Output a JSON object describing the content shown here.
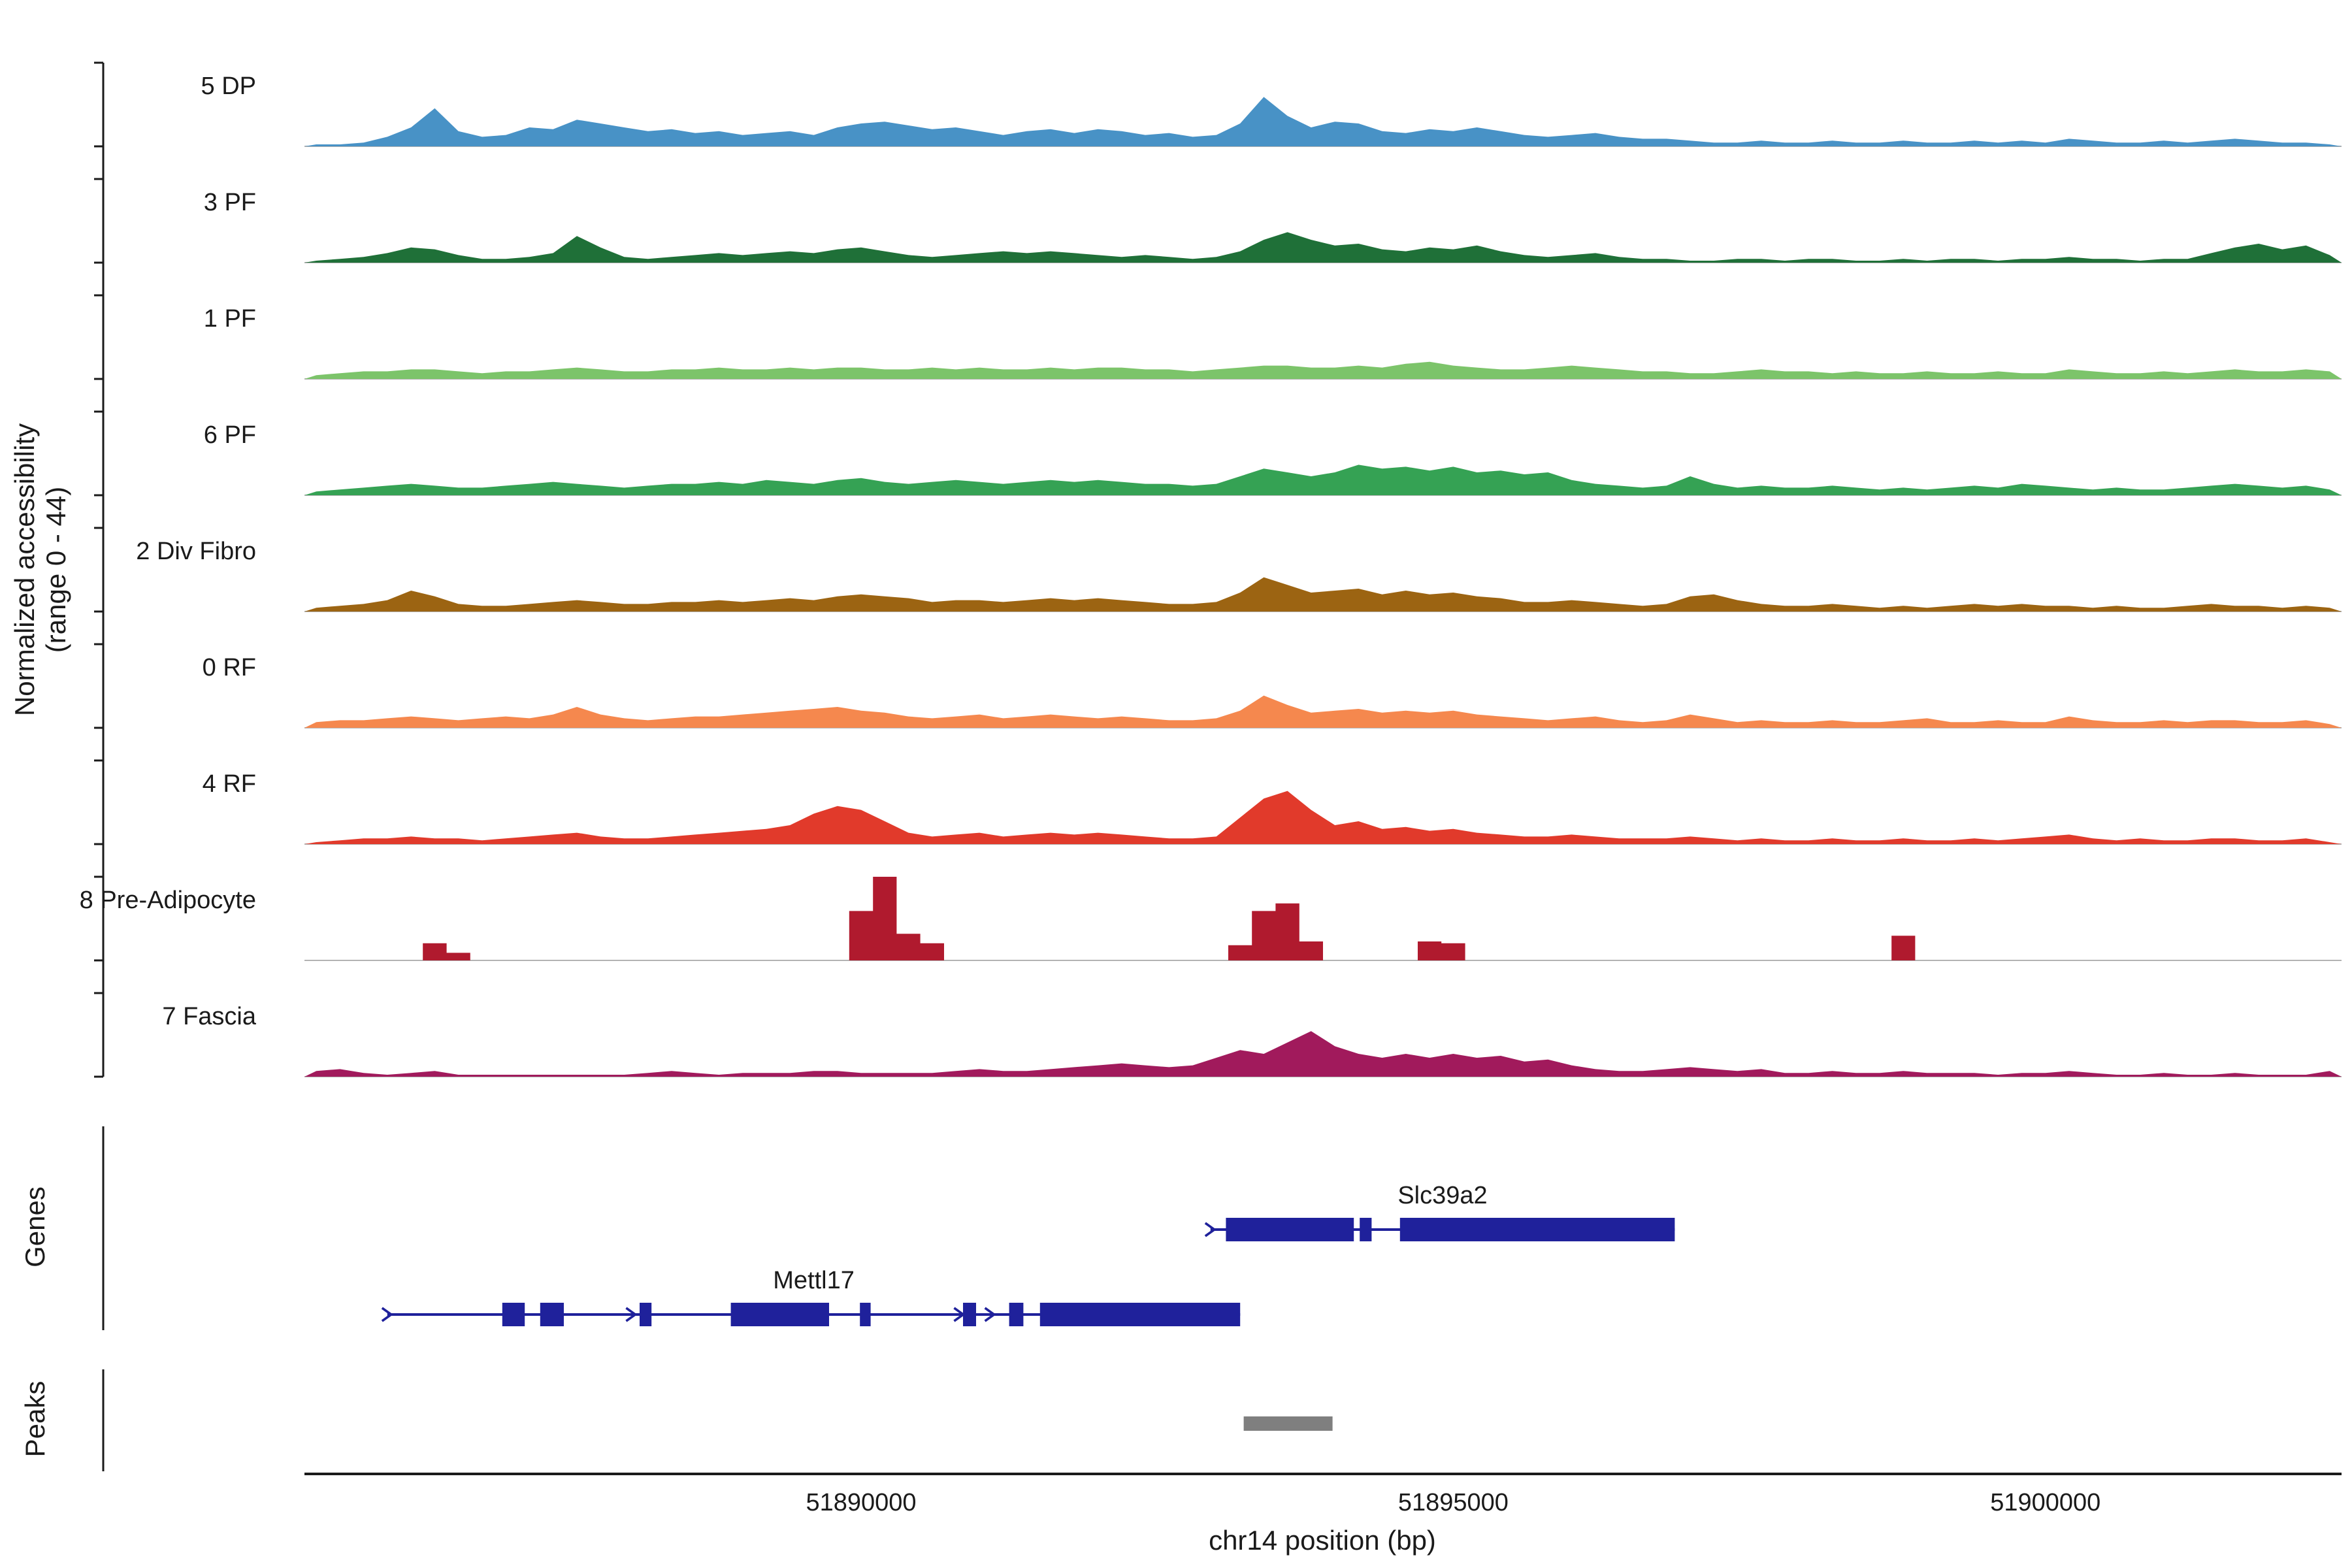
{
  "y_axis": {
    "label_line1": "Normalized accessibility",
    "label_line2": "(range 0 - 44)",
    "min": 0,
    "max": 44
  },
  "x_axis": {
    "label": "chr14 position (bp)",
    "ticks": [
      {
        "bp": 51890000,
        "label": "51890000"
      },
      {
        "bp": 51895000,
        "label": "51895000"
      },
      {
        "bp": 51900000,
        "label": "51900000"
      }
    ]
  },
  "sections": {
    "genes_label": "Genes",
    "peaks_label": "Peaks"
  },
  "chart_data": {
    "type": "area",
    "subtype": "genome-coverage-tracks",
    "region": {
      "chrom": "chr14",
      "start": 51885300,
      "end": 51902500,
      "bin_size_bp": 200
    },
    "xlim": [
      51885300,
      51902500
    ],
    "ylim_per_track": [
      0,
      44
    ],
    "gene_color": "#1f219b",
    "tracks": [
      {
        "id": "5-dp",
        "label": "5 DP",
        "color": "#4892c6",
        "style": "area",
        "values": [
          1,
          1,
          2,
          5,
          10,
          20,
          8,
          5,
          6,
          10,
          9,
          14,
          12,
          10,
          8,
          9,
          7,
          8,
          6,
          7,
          8,
          6,
          10,
          12,
          13,
          11,
          9,
          10,
          8,
          6,
          8,
          9,
          7,
          9,
          8,
          6,
          7,
          5,
          6,
          12,
          26,
          16,
          10,
          13,
          12,
          8,
          7,
          9,
          8,
          10,
          8,
          6,
          5,
          6,
          7,
          5,
          4,
          4,
          3,
          2,
          2,
          3,
          2,
          2,
          3,
          2,
          2,
          3,
          2,
          2,
          3,
          2,
          3,
          2,
          4,
          3,
          2,
          2,
          3,
          2,
          3,
          4,
          3,
          2,
          2,
          1
        ]
      },
      {
        "id": "3-pf",
        "label": "3 PF",
        "color": "#1f7038",
        "style": "area",
        "values": [
          1,
          2,
          3,
          5,
          8,
          7,
          4,
          2,
          2,
          3,
          5,
          14,
          8,
          3,
          2,
          3,
          4,
          5,
          4,
          5,
          6,
          5,
          7,
          8,
          6,
          4,
          3,
          4,
          5,
          6,
          5,
          6,
          5,
          4,
          3,
          4,
          3,
          2,
          3,
          6,
          12,
          16,
          12,
          9,
          10,
          7,
          6,
          8,
          7,
          9,
          6,
          4,
          3,
          4,
          5,
          3,
          2,
          2,
          1,
          1,
          2,
          2,
          1,
          2,
          2,
          1,
          1,
          2,
          1,
          2,
          2,
          1,
          2,
          2,
          3,
          2,
          2,
          1,
          2,
          2,
          5,
          8,
          10,
          7,
          9,
          4
        ]
      },
      {
        "id": "1-pf",
        "label": "1 PF",
        "color": "#7cc46a",
        "style": "area",
        "values": [
          2,
          3,
          4,
          4,
          5,
          5,
          4,
          3,
          4,
          4,
          5,
          6,
          5,
          4,
          4,
          5,
          5,
          6,
          5,
          5,
          6,
          5,
          6,
          6,
          5,
          5,
          6,
          5,
          6,
          5,
          5,
          6,
          5,
          6,
          6,
          5,
          5,
          4,
          5,
          6,
          7,
          7,
          6,
          6,
          7,
          6,
          8,
          9,
          7,
          6,
          5,
          5,
          6,
          7,
          6,
          5,
          4,
          4,
          3,
          3,
          4,
          5,
          4,
          4,
          3,
          4,
          3,
          3,
          4,
          3,
          3,
          4,
          3,
          3,
          5,
          4,
          3,
          3,
          4,
          3,
          4,
          5,
          4,
          4,
          5,
          4
        ]
      },
      {
        "id": "6-pf",
        "label": "6 PF",
        "color": "#35a254",
        "style": "area",
        "values": [
          2,
          3,
          4,
          5,
          6,
          5,
          4,
          4,
          5,
          6,
          7,
          6,
          5,
          4,
          5,
          6,
          6,
          7,
          6,
          8,
          7,
          6,
          8,
          9,
          7,
          6,
          7,
          8,
          7,
          6,
          7,
          8,
          7,
          8,
          7,
          6,
          6,
          5,
          6,
          10,
          14,
          12,
          10,
          12,
          16,
          14,
          15,
          13,
          15,
          12,
          13,
          11,
          12,
          8,
          6,
          5,
          4,
          5,
          10,
          6,
          4,
          5,
          4,
          4,
          5,
          4,
          3,
          4,
          3,
          4,
          5,
          4,
          6,
          5,
          4,
          3,
          4,
          3,
          3,
          4,
          5,
          6,
          5,
          4,
          5,
          3
        ]
      },
      {
        "id": "2-div-fibro",
        "label": "2 Div Fibro",
        "color": "#9c6412",
        "style": "area",
        "values": [
          2,
          3,
          4,
          6,
          11,
          8,
          4,
          3,
          3,
          4,
          5,
          6,
          5,
          4,
          4,
          5,
          5,
          6,
          5,
          6,
          7,
          6,
          8,
          9,
          8,
          7,
          5,
          6,
          6,
          5,
          6,
          7,
          6,
          7,
          6,
          5,
          4,
          4,
          5,
          10,
          18,
          14,
          10,
          11,
          12,
          9,
          11,
          9,
          10,
          8,
          7,
          5,
          5,
          6,
          5,
          4,
          3,
          4,
          8,
          9,
          6,
          4,
          3,
          3,
          4,
          3,
          2,
          3,
          2,
          3,
          4,
          3,
          4,
          3,
          3,
          2,
          3,
          2,
          2,
          3,
          4,
          3,
          3,
          2,
          3,
          2
        ]
      },
      {
        "id": "0-rf",
        "label": "0 RF",
        "color": "#f5884e",
        "style": "area",
        "values": [
          3,
          4,
          4,
          5,
          6,
          5,
          4,
          5,
          6,
          5,
          7,
          11,
          7,
          5,
          4,
          5,
          6,
          6,
          7,
          8,
          9,
          10,
          11,
          9,
          8,
          6,
          5,
          6,
          7,
          5,
          6,
          7,
          6,
          5,
          6,
          5,
          4,
          4,
          5,
          9,
          17,
          12,
          8,
          9,
          10,
          8,
          9,
          8,
          9,
          7,
          6,
          5,
          4,
          5,
          6,
          4,
          3,
          4,
          7,
          5,
          3,
          4,
          3,
          3,
          4,
          3,
          3,
          4,
          5,
          3,
          3,
          4,
          3,
          3,
          6,
          4,
          3,
          3,
          4,
          3,
          4,
          4,
          3,
          3,
          4,
          2
        ]
      },
      {
        "id": "4-rf",
        "label": "4 RF",
        "color": "#e13a2b",
        "style": "area",
        "values": [
          1,
          2,
          3,
          3,
          4,
          3,
          3,
          2,
          3,
          4,
          5,
          6,
          4,
          3,
          3,
          4,
          5,
          6,
          7,
          8,
          10,
          16,
          20,
          18,
          12,
          6,
          4,
          5,
          6,
          4,
          5,
          6,
          5,
          6,
          5,
          4,
          3,
          3,
          4,
          14,
          24,
          28,
          18,
          10,
          12,
          8,
          9,
          7,
          8,
          6,
          5,
          4,
          4,
          5,
          4,
          3,
          3,
          3,
          4,
          3,
          2,
          3,
          2,
          2,
          3,
          2,
          2,
          3,
          2,
          2,
          3,
          2,
          3,
          4,
          5,
          3,
          2,
          3,
          2,
          2,
          3,
          3,
          2,
          2,
          3,
          1
        ]
      },
      {
        "id": "8-pre-adipocyte",
        "label": "8 Pre-Adipocyte",
        "color": "#b01a2e",
        "style": "blocks",
        "values": [
          0,
          0,
          0,
          0,
          0,
          9,
          4,
          0,
          0,
          0,
          0,
          0,
          0,
          0,
          0,
          0,
          0,
          0,
          0,
          0,
          0,
          0,
          0,
          26,
          44,
          14,
          9,
          0,
          0,
          0,
          0,
          0,
          0,
          0,
          0,
          0,
          0,
          0,
          0,
          8,
          26,
          30,
          10,
          0,
          0,
          0,
          0,
          10,
          9,
          0,
          0,
          0,
          0,
          0,
          0,
          0,
          0,
          0,
          0,
          0,
          0,
          0,
          0,
          0,
          0,
          0,
          0,
          13,
          0,
          0,
          0,
          0,
          0,
          0,
          0,
          0,
          0,
          0,
          0,
          0,
          0,
          0,
          0,
          0,
          0,
          0
        ]
      },
      {
        "id": "7-fascia",
        "label": "7 Fascia",
        "color": "#a11a5c",
        "style": "area",
        "values": [
          3,
          4,
          2,
          1,
          2,
          3,
          1,
          1,
          1,
          1,
          1,
          1,
          1,
          1,
          2,
          3,
          2,
          1,
          2,
          2,
          2,
          3,
          3,
          2,
          2,
          2,
          2,
          3,
          4,
          3,
          3,
          4,
          5,
          6,
          7,
          6,
          5,
          6,
          10,
          14,
          12,
          18,
          24,
          16,
          12,
          10,
          12,
          10,
          12,
          10,
          11,
          8,
          9,
          6,
          4,
          3,
          3,
          4,
          5,
          4,
          3,
          4,
          2,
          2,
          3,
          2,
          2,
          3,
          2,
          2,
          2,
          1,
          2,
          2,
          3,
          2,
          1,
          1,
          2,
          1,
          1,
          2,
          1,
          1,
          1,
          3
        ]
      }
    ],
    "genes": [
      {
        "name": "Slc39a2",
        "strand": "+",
        "start": 51892950,
        "end": 51896870,
        "row": 0,
        "exons": [
          [
            51893080,
            51894160
          ],
          [
            51894210,
            51894310
          ],
          [
            51894550,
            51896870
          ]
        ],
        "arrows": [
          51892950
        ]
      },
      {
        "name": "Mettl17",
        "strand": "+",
        "start": 51886000,
        "end": 51893200,
        "row": 1,
        "exons": [
          [
            51886970,
            51887160
          ],
          [
            51887290,
            51887490
          ],
          [
            51888130,
            51888230
          ],
          [
            51888900,
            51889730
          ],
          [
            51889990,
            51890080
          ],
          [
            51890860,
            51890970
          ],
          [
            51891250,
            51891370
          ],
          [
            51891510,
            51893200
          ]
        ],
        "arrows": [
          51886000,
          51888060,
          51890830,
          51891090
        ]
      }
    ],
    "peaks": [
      {
        "start": 51893230,
        "end": 51893980,
        "color": "#7f7f7f"
      }
    ]
  }
}
